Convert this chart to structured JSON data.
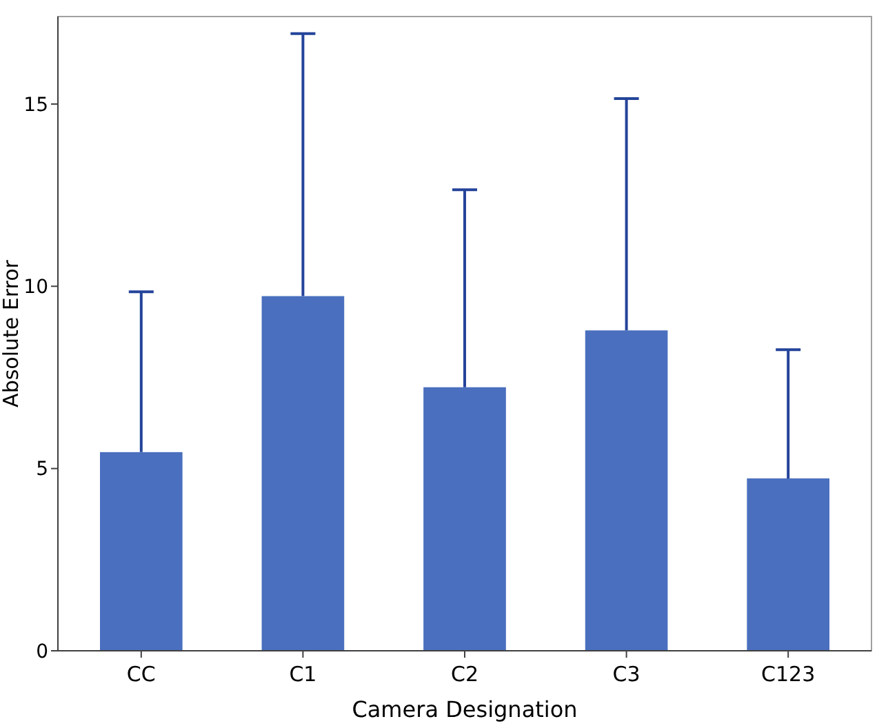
{
  "chart_data": {
    "type": "bar",
    "xlabel": "Camera Designation",
    "ylabel": "Absolute Error",
    "categories": [
      "CC",
      "C1",
      "C2",
      "C3",
      "C123"
    ],
    "values": [
      5.45,
      9.73,
      7.23,
      8.79,
      4.73
    ],
    "errors": [
      [
        5.45,
        9.85
      ],
      [
        9.73,
        16.93
      ],
      [
        7.23,
        12.65
      ],
      [
        8.79,
        15.15
      ],
      [
        4.73,
        8.26
      ]
    ],
    "color": "#4a6fbe",
    "ylim": [
      0,
      17.4
    ],
    "yticks": [
      0,
      5,
      10,
      15
    ],
    "grid": false
  }
}
